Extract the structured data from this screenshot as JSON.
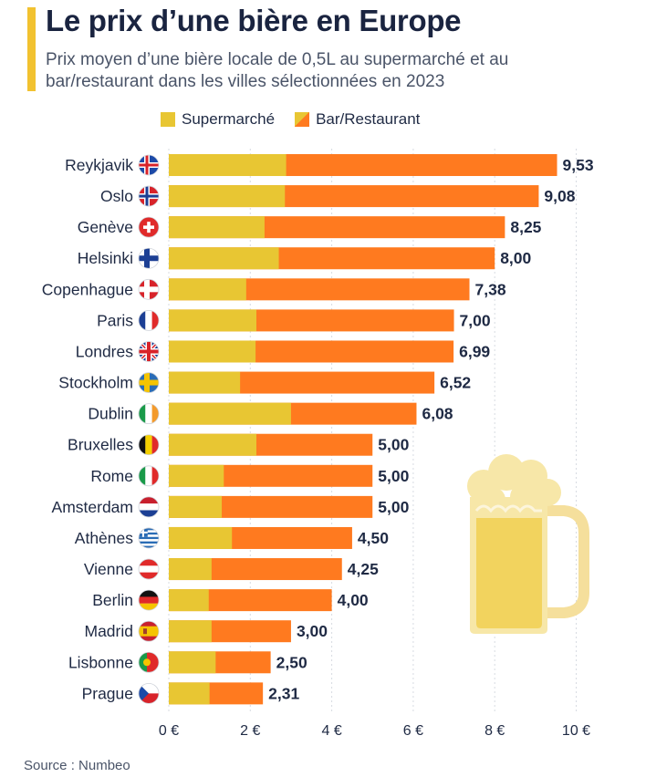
{
  "title": "Le prix d’une bière en Europe",
  "subtitle": "Prix moyen d’une bière locale de 0,5L au supermarché et au bar/restaurant dans les villes sélectionnées en 2023",
  "source": "Source : Numbeo",
  "colors": {
    "supermarche": "#e8c633",
    "bar": "#ff7a1f",
    "accent": "#f2c230"
  },
  "legend": [
    {
      "label": "Supermarché",
      "color": "#e8c633"
    },
    {
      "label": "Bar/Restaurant",
      "color": "#ff7a1f"
    }
  ],
  "chart_data": {
    "type": "bar",
    "orientation": "horizontal",
    "stacked": false,
    "categories": [
      "Reykjavik",
      "Oslo",
      "Genève",
      "Helsinki",
      "Copenhague",
      "Paris",
      "Londres",
      "Stockholm",
      "Dublin",
      "Bruxelles",
      "Rome",
      "Amsterdam",
      "Athènes",
      "Vienne",
      "Berlin",
      "Madrid",
      "Lisbonne",
      "Prague"
    ],
    "flags": [
      "flag-iceland-icon",
      "flag-norway-icon",
      "flag-switzerland-icon",
      "flag-finland-icon",
      "flag-denmark-icon",
      "flag-france-icon",
      "flag-uk-icon",
      "flag-sweden-icon",
      "flag-ireland-icon",
      "flag-belgium-icon",
      "flag-italy-icon",
      "flag-netherlands-icon",
      "flag-greece-icon",
      "flag-austria-icon",
      "flag-germany-icon",
      "flag-spain-icon",
      "flag-portugal-icon",
      "flag-czech-icon"
    ],
    "series": [
      {
        "name": "Supermarché",
        "values": [
          2.88,
          2.85,
          2.35,
          2.7,
          1.9,
          2.15,
          2.13,
          1.75,
          3.0,
          2.15,
          1.35,
          1.3,
          1.55,
          1.05,
          0.98,
          1.05,
          1.15,
          1.0
        ]
      },
      {
        "name": "Bar/Restaurant",
        "values": [
          9.53,
          9.08,
          8.25,
          8.0,
          7.38,
          7.0,
          6.99,
          6.52,
          6.08,
          5.0,
          5.0,
          5.0,
          4.5,
          4.25,
          4.0,
          3.0,
          2.5,
          2.31
        ]
      }
    ],
    "value_labels": [
      "9,53",
      "9,08",
      "8,25",
      "8,00",
      "7,38",
      "7,00",
      "6,99",
      "6,52",
      "6,08",
      "5,00",
      "5,00",
      "5,00",
      "4,50",
      "4,25",
      "4,00",
      "3,00",
      "2,50",
      "2,31"
    ],
    "x_ticks": [
      0,
      2,
      4,
      6,
      8,
      10
    ],
    "x_tick_labels": [
      "0 €",
      "2 €",
      "4 €",
      "6 €",
      "8 €",
      "10 €"
    ],
    "xlim": [
      0,
      10
    ],
    "grid": true
  }
}
